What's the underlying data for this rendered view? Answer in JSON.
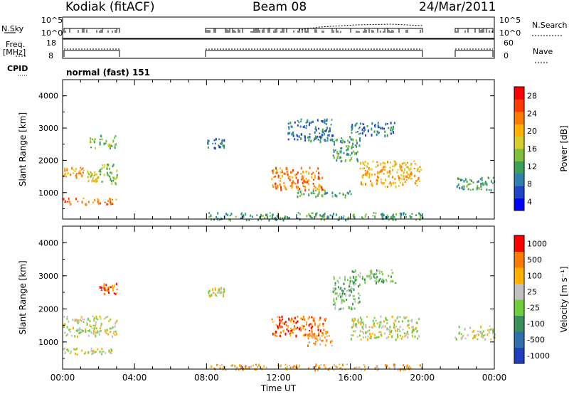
{
  "header": {
    "station": "Kodiak (fitACF)",
    "beam": "Beam 08",
    "date": "24/Mar/2011"
  },
  "status_panels": {
    "nsky_label": "N.Sky",
    "nsky_ticks": [
      "10^5",
      "10^0"
    ],
    "freq_label_1": "Freq.",
    "freq_label_2": "[MHz]",
    "freq_ticks": [
      "18",
      "8"
    ],
    "nave_ticks": [
      "60",
      "0"
    ],
    "right_label_search": "N.Search",
    "right_label_nave": "Nave",
    "cpid_label": "CPID",
    "cpid_value": "normal (fast) 151"
  },
  "chart_data": [
    {
      "type": "heatmap",
      "title": "",
      "ylabel": "Slant Range [km]",
      "xlabel": "",
      "xlim": [
        0,
        24
      ],
      "ylim": [
        180,
        4500
      ],
      "yticks": [
        "4000",
        "3000",
        "2000",
        "1000"
      ],
      "colorbar_label": "Power [dB]",
      "colorbar_ticks": [
        "28",
        "24",
        "20",
        "16",
        "12",
        "8",
        "4"
      ],
      "colorbar_colors": [
        "#0000ff",
        "#1f45c8",
        "#2f7faf",
        "#3aa05a",
        "#7fbf3a",
        "#d4cf2a",
        "#ffb000",
        "#ff7a00",
        "#ff3a00",
        "#ff0000"
      ],
      "regions": [
        {
          "t": [
            0.0,
            1.2
          ],
          "r": [
            1500,
            1800
          ],
          "level": 6
        },
        {
          "t": [
            1.2,
            2.0
          ],
          "r": [
            1350,
            1700
          ],
          "level": 5
        },
        {
          "t": [
            2.0,
            3.0
          ],
          "r": [
            1300,
            1900
          ],
          "level": 4
        },
        {
          "t": [
            1.5,
            3.0
          ],
          "r": [
            2400,
            2800
          ],
          "level": 4
        },
        {
          "t": [
            0.0,
            3.0
          ],
          "r": [
            650,
            850
          ],
          "level": 7
        },
        {
          "t": [
            8.0,
            9.0
          ],
          "r": [
            2400,
            2700
          ],
          "level": 2
        },
        {
          "t": [
            11.6,
            14.5
          ],
          "r": [
            1100,
            1800
          ],
          "level": 7
        },
        {
          "t": [
            12.5,
            15.0
          ],
          "r": [
            2600,
            3300
          ],
          "level": 2
        },
        {
          "t": [
            15.0,
            16.5
          ],
          "r": [
            2000,
            2800
          ],
          "level": 3
        },
        {
          "t": [
            16.5,
            19.9
          ],
          "r": [
            1200,
            2000
          ],
          "level": 6
        },
        {
          "t": [
            16.0,
            18.5
          ],
          "r": [
            2800,
            3200
          ],
          "level": 2
        },
        {
          "t": [
            13.0,
            16.0
          ],
          "r": [
            900,
            1100
          ],
          "level": 3
        },
        {
          "t": [
            21.8,
            24.0
          ],
          "r": [
            1100,
            1500
          ],
          "level": 3
        },
        {
          "t": [
            8.0,
            20.0
          ],
          "r": [
            180,
            400
          ],
          "level": 3
        }
      ]
    },
    {
      "type": "heatmap",
      "title": "",
      "ylabel": "Slant Range [km]",
      "xlabel": "Time UT",
      "xlim": [
        0,
        24
      ],
      "ylim": [
        180,
        4500
      ],
      "xticks": [
        "00:00",
        "04:00",
        "08:00",
        "12:00",
        "16:00",
        "20:00",
        "00:00"
      ],
      "yticks": [
        "4000",
        "3000",
        "2000",
        "1000"
      ],
      "colorbar_label": "Velocity [m s⁻¹]",
      "colorbar_ticks": [
        "1000",
        "500",
        "100",
        "25",
        "-25",
        "-100",
        "-500",
        "-1000"
      ],
      "colorbar_colors": [
        "#1f3fbf",
        "#2f6faf",
        "#3a8f5a",
        "#6fcf3a",
        "#c0c0c0",
        "#ffb000",
        "#ff7a00",
        "#ff0000"
      ],
      "regions": [
        {
          "t": [
            0.0,
            3.0
          ],
          "r": [
            1200,
            1800
          ],
          "level": 4
        },
        {
          "t": [
            0.0,
            3.0
          ],
          "r": [
            650,
            850
          ],
          "level": 4
        },
        {
          "t": [
            2.0,
            3.0
          ],
          "r": [
            2400,
            2800
          ],
          "level": 6
        },
        {
          "t": [
            8.0,
            9.0
          ],
          "r": [
            2400,
            2700
          ],
          "level": 4
        },
        {
          "t": [
            11.6,
            14.8
          ],
          "r": [
            1200,
            1800
          ],
          "level": 6
        },
        {
          "t": [
            13.5,
            15.0
          ],
          "r": [
            900,
            1300
          ],
          "level": 5
        },
        {
          "t": [
            15.0,
            16.5
          ],
          "r": [
            2000,
            3000
          ],
          "level": 3
        },
        {
          "t": [
            16.0,
            19.8
          ],
          "r": [
            1100,
            1800
          ],
          "level": 4
        },
        {
          "t": [
            16.0,
            18.5
          ],
          "r": [
            2800,
            3200
          ],
          "level": 3
        },
        {
          "t": [
            21.8,
            24.0
          ],
          "r": [
            1100,
            1500
          ],
          "level": 4
        },
        {
          "t": [
            8.0,
            20.0
          ],
          "r": [
            180,
            350
          ],
          "level": 5
        }
      ]
    }
  ]
}
